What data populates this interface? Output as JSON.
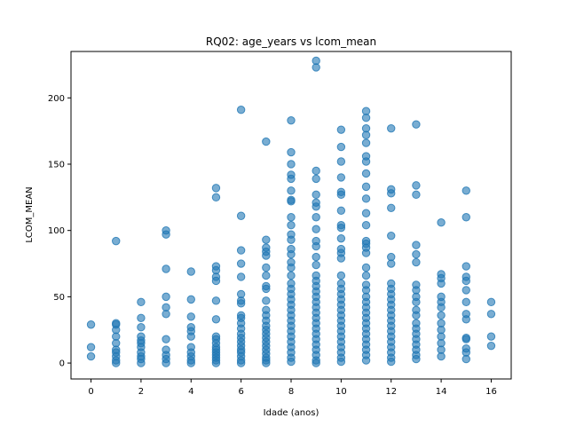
{
  "chart_data": {
    "type": "scatter",
    "title": "RQ02: age_years vs lcom_mean",
    "xlabel": "Idade (anos)",
    "ylabel": "LCOM_MEAN",
    "xlim": [
      -0.8,
      16.8
    ],
    "ylim": [
      -12,
      235
    ],
    "xticks": [
      0,
      2,
      4,
      6,
      8,
      10,
      12,
      14,
      16
    ],
    "yticks": [
      0,
      50,
      100,
      150,
      200
    ],
    "grid": false,
    "legend": "none",
    "marker_color": "#1f77b4",
    "marker_alpha": 0.6,
    "series": [
      {
        "points": [
          [
            0,
            29
          ],
          [
            0,
            12
          ],
          [
            0,
            5
          ],
          [
            1,
            92
          ],
          [
            1,
            30
          ],
          [
            1,
            29
          ],
          [
            1,
            25
          ],
          [
            1,
            20
          ],
          [
            1,
            15
          ],
          [
            1,
            10
          ],
          [
            1,
            8
          ],
          [
            1,
            5
          ],
          [
            1,
            2
          ],
          [
            1,
            0
          ],
          [
            2,
            46
          ],
          [
            2,
            34
          ],
          [
            2,
            27
          ],
          [
            2,
            20
          ],
          [
            2,
            17
          ],
          [
            2,
            15
          ],
          [
            2,
            12
          ],
          [
            2,
            8
          ],
          [
            2,
            5
          ],
          [
            2,
            3
          ],
          [
            2,
            0
          ],
          [
            3,
            100
          ],
          [
            3,
            97
          ],
          [
            3,
            71
          ],
          [
            3,
            50
          ],
          [
            3,
            42
          ],
          [
            3,
            37
          ],
          [
            3,
            18
          ],
          [
            3,
            10
          ],
          [
            3,
            6
          ],
          [
            3,
            3
          ],
          [
            3,
            0
          ],
          [
            4,
            69
          ],
          [
            4,
            48
          ],
          [
            4,
            35
          ],
          [
            4,
            27
          ],
          [
            4,
            24
          ],
          [
            4,
            20
          ],
          [
            4,
            12
          ],
          [
            4,
            8
          ],
          [
            4,
            5
          ],
          [
            4,
            2
          ],
          [
            4,
            0
          ],
          [
            5,
            132
          ],
          [
            5,
            125
          ],
          [
            5,
            73
          ],
          [
            5,
            70
          ],
          [
            5,
            65
          ],
          [
            5,
            62
          ],
          [
            5,
            47
          ],
          [
            5,
            33
          ],
          [
            5,
            20
          ],
          [
            5,
            18
          ],
          [
            5,
            15
          ],
          [
            5,
            12
          ],
          [
            5,
            10
          ],
          [
            5,
            8
          ],
          [
            5,
            6
          ],
          [
            5,
            4
          ],
          [
            5,
            2
          ],
          [
            5,
            0
          ],
          [
            6,
            191
          ],
          [
            6,
            111
          ],
          [
            6,
            85
          ],
          [
            6,
            75
          ],
          [
            6,
            65
          ],
          [
            6,
            52
          ],
          [
            6,
            47
          ],
          [
            6,
            45
          ],
          [
            6,
            36
          ],
          [
            6,
            34
          ],
          [
            6,
            30
          ],
          [
            6,
            26
          ],
          [
            6,
            22
          ],
          [
            6,
            19
          ],
          [
            6,
            16
          ],
          [
            6,
            13
          ],
          [
            6,
            10
          ],
          [
            6,
            8
          ],
          [
            6,
            5
          ],
          [
            6,
            2
          ],
          [
            6,
            0
          ],
          [
            7,
            167
          ],
          [
            7,
            93
          ],
          [
            7,
            87
          ],
          [
            7,
            84
          ],
          [
            7,
            81
          ],
          [
            7,
            72
          ],
          [
            7,
            66
          ],
          [
            7,
            58
          ],
          [
            7,
            56
          ],
          [
            7,
            47
          ],
          [
            7,
            40
          ],
          [
            7,
            36
          ],
          [
            7,
            32
          ],
          [
            7,
            28
          ],
          [
            7,
            25
          ],
          [
            7,
            22
          ],
          [
            7,
            19
          ],
          [
            7,
            16
          ],
          [
            7,
            13
          ],
          [
            7,
            10
          ],
          [
            7,
            7
          ],
          [
            7,
            4
          ],
          [
            7,
            2
          ],
          [
            7,
            0
          ],
          [
            8,
            183
          ],
          [
            8,
            159
          ],
          [
            8,
            150
          ],
          [
            8,
            142
          ],
          [
            8,
            139
          ],
          [
            8,
            130
          ],
          [
            8,
            123
          ],
          [
            8,
            122
          ],
          [
            8,
            110
          ],
          [
            8,
            104
          ],
          [
            8,
            97
          ],
          [
            8,
            93
          ],
          [
            8,
            86
          ],
          [
            8,
            82
          ],
          [
            8,
            76
          ],
          [
            8,
            72
          ],
          [
            8,
            66
          ],
          [
            8,
            60
          ],
          [
            8,
            56
          ],
          [
            8,
            52
          ],
          [
            8,
            48
          ],
          [
            8,
            44
          ],
          [
            8,
            40
          ],
          [
            8,
            36
          ],
          [
            8,
            32
          ],
          [
            8,
            28
          ],
          [
            8,
            24
          ],
          [
            8,
            20
          ],
          [
            8,
            16
          ],
          [
            8,
            12
          ],
          [
            8,
            8
          ],
          [
            8,
            4
          ],
          [
            8,
            1
          ],
          [
            9,
            228
          ],
          [
            9,
            223
          ],
          [
            9,
            145
          ],
          [
            9,
            139
          ],
          [
            9,
            127
          ],
          [
            9,
            121
          ],
          [
            9,
            118
          ],
          [
            9,
            110
          ],
          [
            9,
            101
          ],
          [
            9,
            92
          ],
          [
            9,
            88
          ],
          [
            9,
            80
          ],
          [
            9,
            74
          ],
          [
            9,
            66
          ],
          [
            9,
            62
          ],
          [
            9,
            58
          ],
          [
            9,
            54
          ],
          [
            9,
            50
          ],
          [
            9,
            46
          ],
          [
            9,
            42
          ],
          [
            9,
            38
          ],
          [
            9,
            34
          ],
          [
            9,
            30
          ],
          [
            9,
            26
          ],
          [
            9,
            22
          ],
          [
            9,
            18
          ],
          [
            9,
            14
          ],
          [
            9,
            10
          ],
          [
            9,
            6
          ],
          [
            9,
            2
          ],
          [
            9,
            0
          ],
          [
            10,
            176
          ],
          [
            10,
            163
          ],
          [
            10,
            152
          ],
          [
            10,
            140
          ],
          [
            10,
            129
          ],
          [
            10,
            127
          ],
          [
            10,
            115
          ],
          [
            10,
            104
          ],
          [
            10,
            102
          ],
          [
            10,
            94
          ],
          [
            10,
            86
          ],
          [
            10,
            83
          ],
          [
            10,
            79
          ],
          [
            10,
            66
          ],
          [
            10,
            60
          ],
          [
            10,
            56
          ],
          [
            10,
            52
          ],
          [
            10,
            48
          ],
          [
            10,
            44
          ],
          [
            10,
            40
          ],
          [
            10,
            36
          ],
          [
            10,
            32
          ],
          [
            10,
            28
          ],
          [
            10,
            24
          ],
          [
            10,
            20
          ],
          [
            10,
            16
          ],
          [
            10,
            12
          ],
          [
            10,
            8
          ],
          [
            10,
            4
          ],
          [
            10,
            1
          ],
          [
            11,
            190
          ],
          [
            11,
            185
          ],
          [
            11,
            177
          ],
          [
            11,
            172
          ],
          [
            11,
            166
          ],
          [
            11,
            156
          ],
          [
            11,
            152
          ],
          [
            11,
            143
          ],
          [
            11,
            133
          ],
          [
            11,
            124
          ],
          [
            11,
            113
          ],
          [
            11,
            104
          ],
          [
            11,
            92
          ],
          [
            11,
            90
          ],
          [
            11,
            87
          ],
          [
            11,
            83
          ],
          [
            11,
            72
          ],
          [
            11,
            66
          ],
          [
            11,
            59
          ],
          [
            11,
            55
          ],
          [
            11,
            50
          ],
          [
            11,
            46
          ],
          [
            11,
            42
          ],
          [
            11,
            38
          ],
          [
            11,
            34
          ],
          [
            11,
            30
          ],
          [
            11,
            26
          ],
          [
            11,
            22
          ],
          [
            11,
            18
          ],
          [
            11,
            14
          ],
          [
            11,
            10
          ],
          [
            11,
            6
          ],
          [
            11,
            2
          ],
          [
            12,
            177
          ],
          [
            12,
            131
          ],
          [
            12,
            128
          ],
          [
            12,
            117
          ],
          [
            12,
            96
          ],
          [
            12,
            80
          ],
          [
            12,
            75
          ],
          [
            12,
            60
          ],
          [
            12,
            56
          ],
          [
            12,
            52
          ],
          [
            12,
            48
          ],
          [
            12,
            44
          ],
          [
            12,
            40
          ],
          [
            12,
            36
          ],
          [
            12,
            32
          ],
          [
            12,
            28
          ],
          [
            12,
            24
          ],
          [
            12,
            20
          ],
          [
            12,
            16
          ],
          [
            12,
            12
          ],
          [
            12,
            8
          ],
          [
            12,
            4
          ],
          [
            12,
            1
          ],
          [
            13,
            180
          ],
          [
            13,
            134
          ],
          [
            13,
            127
          ],
          [
            13,
            89
          ],
          [
            13,
            82
          ],
          [
            13,
            76
          ],
          [
            13,
            59
          ],
          [
            13,
            55
          ],
          [
            13,
            50
          ],
          [
            13,
            46
          ],
          [
            13,
            40
          ],
          [
            13,
            36
          ],
          [
            13,
            30
          ],
          [
            13,
            26
          ],
          [
            13,
            22
          ],
          [
            13,
            18
          ],
          [
            13,
            14
          ],
          [
            13,
            10
          ],
          [
            13,
            6
          ],
          [
            13,
            3
          ],
          [
            14,
            106
          ],
          [
            14,
            67
          ],
          [
            14,
            64
          ],
          [
            14,
            60
          ],
          [
            14,
            50
          ],
          [
            14,
            46
          ],
          [
            14,
            42
          ],
          [
            14,
            36
          ],
          [
            14,
            30
          ],
          [
            14,
            25
          ],
          [
            14,
            20
          ],
          [
            14,
            15
          ],
          [
            14,
            10
          ],
          [
            14,
            5
          ],
          [
            15,
            130
          ],
          [
            15,
            110
          ],
          [
            15,
            73
          ],
          [
            15,
            65
          ],
          [
            15,
            62
          ],
          [
            15,
            55
          ],
          [
            15,
            46
          ],
          [
            15,
            37
          ],
          [
            15,
            33
          ],
          [
            15,
            19
          ],
          [
            15,
            18
          ],
          [
            15,
            11
          ],
          [
            15,
            8
          ],
          [
            15,
            3
          ],
          [
            16,
            46
          ],
          [
            16,
            37
          ],
          [
            16,
            20
          ],
          [
            16,
            13
          ]
        ]
      }
    ]
  }
}
